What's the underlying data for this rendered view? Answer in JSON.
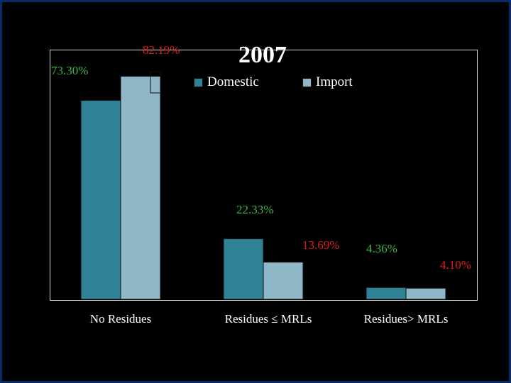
{
  "chart_data": {
    "type": "bar",
    "title": "2007",
    "categories": [
      "No Residues",
      "Residues ≤ MRLs",
      "Residues> MRLs"
    ],
    "series": [
      {
        "name": "Domestic",
        "values": [
          73.3,
          22.33,
          4.36
        ],
        "labels": [
          "73.30%",
          "22.33%",
          "4.36%"
        ],
        "color": "#2f8196",
        "label_color": "#3fb54a"
      },
      {
        "name": "Import",
        "values": [
          82.19,
          13.69,
          4.1
        ],
        "labels": [
          "82.19%",
          "13.69%",
          "4.10%"
        ],
        "color": "#8fb7c7",
        "label_color": "#e21b1b"
      }
    ],
    "ylim": [
      0,
      92
    ],
    "legend_position": "top",
    "grid": false
  }
}
